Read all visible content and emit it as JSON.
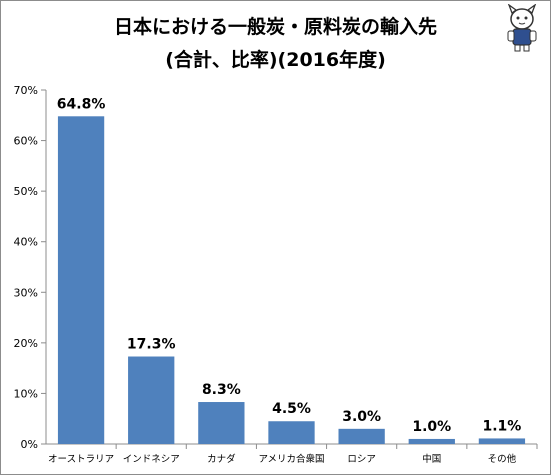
{
  "chart_data": {
    "type": "bar",
    "title": "日本における一般炭・原料炭の輸入先",
    "subtitle": "(合計、比率)(2016年度)",
    "categories": [
      "オーストラリア",
      "インドネシア",
      "カナダ",
      "アメリカ合衆国",
      "ロシア",
      "中国",
      "その他"
    ],
    "values": [
      64.8,
      17.3,
      8.3,
      4.5,
      3.0,
      1.0,
      1.1
    ],
    "data_labels": [
      "64.8%",
      "17.3%",
      "8.3%",
      "4.5%",
      "3.0%",
      "1.0%",
      "1.1%"
    ],
    "y_ticks": [
      "0%",
      "10%",
      "20%",
      "30%",
      "40%",
      "50%",
      "60%",
      "70%"
    ],
    "ylim": [
      0,
      70
    ],
    "y_unit": "%",
    "grid": false,
    "bar_color": "#4f81bd",
    "xlabel": "",
    "ylabel": ""
  }
}
